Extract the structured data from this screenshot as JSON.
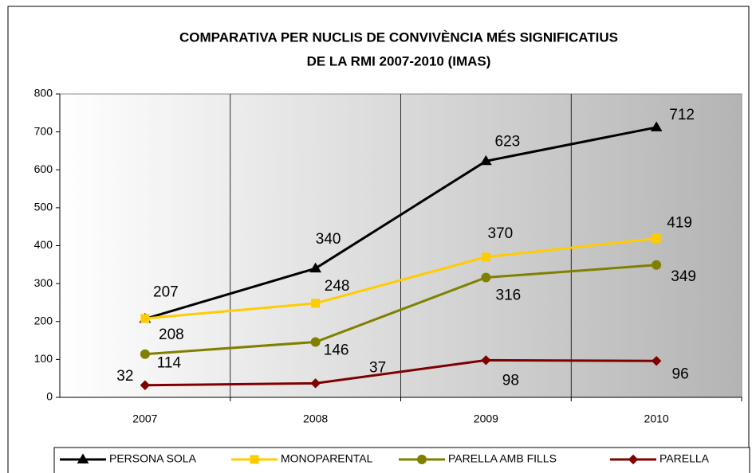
{
  "chart_data": {
    "type": "line",
    "title": [
      "COMPARATIVA PER NUCLIS DE CONVIVÈNCIA MÉS SIGNIFICATIUS",
      "DE LA RMI 2007-2010 (IMAS)"
    ],
    "categories": [
      "2007",
      "2008",
      "2009",
      "2010"
    ],
    "series": [
      {
        "name": "PERSONA SOLA",
        "color": "#000000",
        "marker": "triangle",
        "values": [
          207,
          340,
          623,
          712
        ]
      },
      {
        "name": "MONOPARENTAL",
        "color": "#ffcc00",
        "marker": "square",
        "values": [
          208,
          248,
          370,
          419
        ]
      },
      {
        "name": "PARELLA AMB FILLS",
        "color": "#808000",
        "marker": "circle",
        "values": [
          114,
          146,
          316,
          349
        ]
      },
      {
        "name": "PARELLA",
        "color": "#800000",
        "marker": "diamond",
        "values": [
          32,
          37,
          98,
          96
        ]
      }
    ],
    "ylim": [
      0,
      800
    ],
    "yticks": [
      0,
      100,
      200,
      300,
      400,
      500,
      600,
      700,
      800
    ],
    "legend": "bottom"
  }
}
